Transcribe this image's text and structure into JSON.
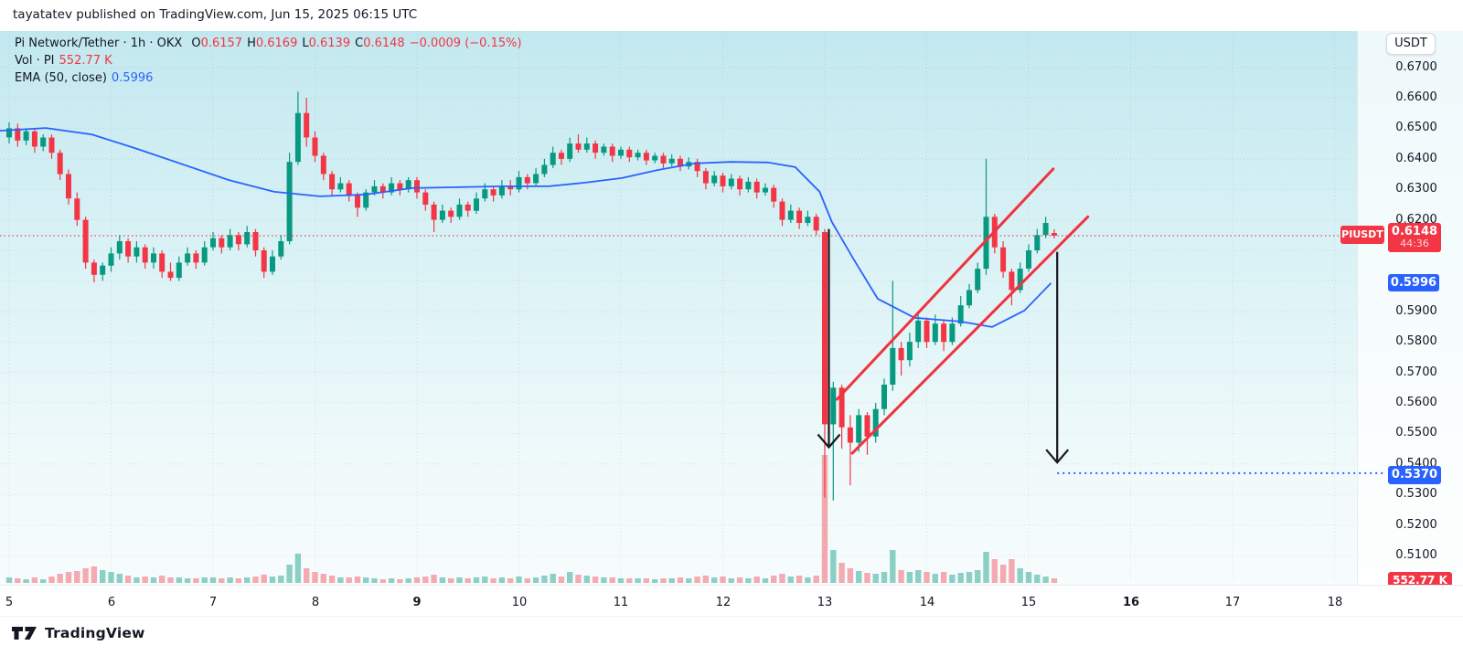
{
  "header": {
    "attribution": "tayatatev published on TradingView.com, Jun 15, 2025 06:15 UTC"
  },
  "legend": {
    "symbol_line": "Pi Network/Tether · 1h · OKX",
    "ohlc": {
      "o_label": "O",
      "o": "0.6157",
      "h_label": "H",
      "h": "0.6169",
      "l_label": "L",
      "l": "0.6139",
      "c_label": "C",
      "c": "0.6148",
      "change": "−0.0009 (−0.15%)"
    },
    "volume_row": {
      "label": "Vol · PI",
      "value": "552.77 K"
    },
    "ema_row": {
      "label": "EMA (50, close)",
      "value": "0.5996"
    }
  },
  "price_axis": {
    "currency": "USDT",
    "ticks": [
      {
        "label": "0.6700",
        "value": 0.67
      },
      {
        "label": "0.6600",
        "value": 0.66
      },
      {
        "label": "0.6500",
        "value": 0.65
      },
      {
        "label": "0.6400",
        "value": 0.64
      },
      {
        "label": "0.6300",
        "value": 0.63
      },
      {
        "label": "0.6200",
        "value": 0.62
      },
      {
        "label": "0.5900",
        "value": 0.59
      },
      {
        "label": "0.5800",
        "value": 0.58
      },
      {
        "label": "0.5700",
        "value": 0.57
      },
      {
        "label": "0.5600",
        "value": 0.56
      },
      {
        "label": "0.5500",
        "value": 0.55
      },
      {
        "label": "0.5400",
        "value": 0.54
      },
      {
        "label": "0.5300",
        "value": 0.53
      },
      {
        "label": "0.5200",
        "value": 0.52
      },
      {
        "label": "0.5100",
        "value": 0.51
      }
    ],
    "badges": {
      "symbol": "PIUSDT",
      "price": "0.6148",
      "countdown": "44:36",
      "ema": "0.5996",
      "target": "0.5370",
      "volume": "552.77 K"
    }
  },
  "time_axis": {
    "labels": [
      {
        "text": "5",
        "t": 5,
        "bold": false
      },
      {
        "text": "6",
        "t": 6,
        "bold": false
      },
      {
        "text": "7",
        "t": 7,
        "bold": false
      },
      {
        "text": "8",
        "t": 8,
        "bold": false
      },
      {
        "text": "9",
        "t": 9,
        "bold": true
      },
      {
        "text": "10",
        "t": 10,
        "bold": false
      },
      {
        "text": "11",
        "t": 11,
        "bold": false
      },
      {
        "text": "12",
        "t": 12,
        "bold": false
      },
      {
        "text": "13",
        "t": 13,
        "bold": false
      },
      {
        "text": "14",
        "t": 14,
        "bold": false
      },
      {
        "text": "15",
        "t": 15,
        "bold": false
      },
      {
        "text": "16",
        "t": 16,
        "bold": true
      },
      {
        "text": "17",
        "t": 17,
        "bold": false
      },
      {
        "text": "18",
        "t": 18,
        "bold": false
      }
    ]
  },
  "footer": {
    "brand": "TradingView"
  },
  "colors": {
    "up": "#089981",
    "down": "#f23645",
    "ema": "#2962ff",
    "vol_up": "rgba(8,153,129,0.45)",
    "vol_down": "rgba(242,54,69,0.42)",
    "channel": "#ef333f",
    "arrow": "#16181e",
    "price_line": "#f23645",
    "target_line": "#2962ff",
    "grid": "rgba(19,23,34,0.10)"
  },
  "chart_data": {
    "type": "candlestick",
    "title": "Pi Network/Tether 1h OKX",
    "symbol": "PIUSDT",
    "exchange": "OKX",
    "interval": "1h",
    "x_unit": "day of June 2025",
    "ylabel": "USDT",
    "ylim": [
      0.505,
      0.675
    ],
    "xlim": [
      4.9,
      18.6
    ],
    "t0": 5.0,
    "dt": 0.0833333,
    "current_price": 0.6148,
    "countdown": "44:36",
    "ema_period": 50,
    "ema_value": 0.5996,
    "target_price": 0.537,
    "last_bar_volume": "552.77 K",
    "candles": [
      [
        0.647,
        0.652,
        0.645,
        0.65,
        6
      ],
      [
        0.65,
        0.6515,
        0.644,
        0.646,
        5
      ],
      [
        0.646,
        0.65,
        0.6445,
        0.649,
        4
      ],
      [
        0.649,
        0.65,
        0.642,
        0.644,
        6
      ],
      [
        0.644,
        0.648,
        0.6425,
        0.647,
        4
      ],
      [
        0.647,
        0.648,
        0.64,
        0.642,
        7
      ],
      [
        0.642,
        0.643,
        0.633,
        0.635,
        10
      ],
      [
        0.635,
        0.6365,
        0.625,
        0.627,
        12
      ],
      [
        0.627,
        0.629,
        0.618,
        0.62,
        13
      ],
      [
        0.62,
        0.621,
        0.604,
        0.606,
        16
      ],
      [
        0.606,
        0.607,
        0.5995,
        0.602,
        18
      ],
      [
        0.602,
        0.606,
        0.6,
        0.605,
        14
      ],
      [
        0.605,
        0.611,
        0.603,
        0.609,
        12
      ],
      [
        0.609,
        0.615,
        0.607,
        0.613,
        10
      ],
      [
        0.613,
        0.614,
        0.606,
        0.608,
        8
      ],
      [
        0.608,
        0.613,
        0.606,
        0.611,
        6
      ],
      [
        0.611,
        0.612,
        0.604,
        0.606,
        7
      ],
      [
        0.606,
        0.611,
        0.604,
        0.609,
        6
      ],
      [
        0.609,
        0.61,
        0.601,
        0.603,
        8
      ],
      [
        0.603,
        0.606,
        0.6,
        0.601,
        6
      ],
      [
        0.601,
        0.608,
        0.6,
        0.606,
        6
      ],
      [
        0.606,
        0.611,
        0.605,
        0.609,
        5
      ],
      [
        0.609,
        0.61,
        0.604,
        0.606,
        5
      ],
      [
        0.606,
        0.613,
        0.605,
        0.611,
        6
      ],
      [
        0.611,
        0.616,
        0.61,
        0.614,
        6
      ],
      [
        0.614,
        0.615,
        0.609,
        0.611,
        5
      ],
      [
        0.611,
        0.617,
        0.61,
        0.615,
        6
      ],
      [
        0.615,
        0.616,
        0.61,
        0.612,
        5
      ],
      [
        0.612,
        0.618,
        0.611,
        0.616,
        6
      ],
      [
        0.616,
        0.617,
        0.608,
        0.61,
        7
      ],
      [
        0.61,
        0.611,
        0.601,
        0.603,
        9
      ],
      [
        0.603,
        0.61,
        0.602,
        0.608,
        7
      ],
      [
        0.608,
        0.615,
        0.607,
        0.613,
        8
      ],
      [
        0.613,
        0.642,
        0.612,
        0.639,
        20
      ],
      [
        0.639,
        0.662,
        0.638,
        0.655,
        32
      ],
      [
        0.655,
        0.66,
        0.644,
        0.647,
        16
      ],
      [
        0.647,
        0.649,
        0.639,
        0.641,
        12
      ],
      [
        0.641,
        0.642,
        0.633,
        0.635,
        10
      ],
      [
        0.635,
        0.636,
        0.628,
        0.63,
        8
      ],
      [
        0.63,
        0.634,
        0.629,
        0.632,
        6
      ],
      [
        0.632,
        0.633,
        0.626,
        0.628,
        6
      ],
      [
        0.628,
        0.629,
        0.621,
        0.624,
        7
      ],
      [
        0.624,
        0.63,
        0.623,
        0.629,
        6
      ],
      [
        0.629,
        0.633,
        0.628,
        0.631,
        5
      ],
      [
        0.631,
        0.632,
        0.627,
        0.629,
        4
      ],
      [
        0.629,
        0.634,
        0.628,
        0.632,
        5
      ],
      [
        0.632,
        0.633,
        0.628,
        0.63,
        4
      ],
      [
        0.63,
        0.634,
        0.629,
        0.633,
        5
      ],
      [
        0.633,
        0.634,
        0.627,
        0.629,
        6
      ],
      [
        0.629,
        0.63,
        0.623,
        0.625,
        7
      ],
      [
        0.625,
        0.626,
        0.616,
        0.62,
        9
      ],
      [
        0.62,
        0.625,
        0.619,
        0.623,
        6
      ],
      [
        0.623,
        0.624,
        0.619,
        0.621,
        5
      ],
      [
        0.621,
        0.627,
        0.62,
        0.625,
        6
      ],
      [
        0.625,
        0.626,
        0.621,
        0.623,
        5
      ],
      [
        0.623,
        0.629,
        0.622,
        0.627,
        6
      ],
      [
        0.627,
        0.632,
        0.626,
        0.63,
        7
      ],
      [
        0.63,
        0.631,
        0.626,
        0.628,
        5
      ],
      [
        0.628,
        0.633,
        0.627,
        0.631,
        6
      ],
      [
        0.631,
        0.633,
        0.628,
        0.63,
        5
      ],
      [
        0.63,
        0.636,
        0.629,
        0.634,
        7
      ],
      [
        0.634,
        0.635,
        0.63,
        0.632,
        5
      ],
      [
        0.632,
        0.637,
        0.631,
        0.635,
        6
      ],
      [
        0.635,
        0.64,
        0.634,
        0.638,
        8
      ],
      [
        0.638,
        0.644,
        0.637,
        0.642,
        10
      ],
      [
        0.642,
        0.643,
        0.638,
        0.64,
        7
      ],
      [
        0.64,
        0.647,
        0.639,
        0.645,
        12
      ],
      [
        0.645,
        0.648,
        0.642,
        0.643,
        9
      ],
      [
        0.643,
        0.647,
        0.642,
        0.645,
        8
      ],
      [
        0.645,
        0.646,
        0.64,
        0.642,
        7
      ],
      [
        0.642,
        0.645,
        0.641,
        0.644,
        6
      ],
      [
        0.644,
        0.645,
        0.639,
        0.641,
        6
      ],
      [
        0.641,
        0.644,
        0.64,
        0.643,
        5
      ],
      [
        0.643,
        0.644,
        0.639,
        0.6405,
        5
      ],
      [
        0.6405,
        0.643,
        0.6395,
        0.642,
        5
      ],
      [
        0.642,
        0.643,
        0.638,
        0.6395,
        5
      ],
      [
        0.6395,
        0.642,
        0.6385,
        0.641,
        4
      ],
      [
        0.641,
        0.642,
        0.637,
        0.6385,
        5
      ],
      [
        0.6385,
        0.6415,
        0.6375,
        0.64,
        5
      ],
      [
        0.64,
        0.641,
        0.636,
        0.6375,
        6
      ],
      [
        0.6375,
        0.6405,
        0.6365,
        0.639,
        5
      ],
      [
        0.639,
        0.64,
        0.634,
        0.636,
        7
      ],
      [
        0.636,
        0.637,
        0.63,
        0.632,
        8
      ],
      [
        0.632,
        0.636,
        0.631,
        0.6345,
        6
      ],
      [
        0.6345,
        0.6355,
        0.629,
        0.631,
        7
      ],
      [
        0.631,
        0.635,
        0.63,
        0.6335,
        5
      ],
      [
        0.6335,
        0.6345,
        0.628,
        0.63,
        6
      ],
      [
        0.63,
        0.634,
        0.629,
        0.6325,
        5
      ],
      [
        0.6325,
        0.6335,
        0.627,
        0.629,
        7
      ],
      [
        0.629,
        0.632,
        0.628,
        0.6305,
        5
      ],
      [
        0.6305,
        0.6315,
        0.624,
        0.626,
        8
      ],
      [
        0.626,
        0.627,
        0.618,
        0.62,
        10
      ],
      [
        0.62,
        0.625,
        0.619,
        0.623,
        7
      ],
      [
        0.623,
        0.624,
        0.617,
        0.619,
        8
      ],
      [
        0.619,
        0.623,
        0.618,
        0.621,
        6
      ],
      [
        0.621,
        0.622,
        0.615,
        0.6165,
        8
      ],
      [
        0.616,
        0.617,
        0.529,
        0.553,
        140
      ],
      [
        0.553,
        0.567,
        0.528,
        0.565,
        36
      ],
      [
        0.565,
        0.566,
        0.545,
        0.552,
        22
      ],
      [
        0.552,
        0.556,
        0.533,
        0.547,
        16
      ],
      [
        0.547,
        0.558,
        0.544,
        0.556,
        13
      ],
      [
        0.556,
        0.557,
        0.543,
        0.549,
        11
      ],
      [
        0.549,
        0.56,
        0.547,
        0.558,
        10
      ],
      [
        0.558,
        0.568,
        0.556,
        0.566,
        12
      ],
      [
        0.566,
        0.6,
        0.564,
        0.578,
        36
      ],
      [
        0.578,
        0.58,
        0.569,
        0.574,
        14
      ],
      [
        0.574,
        0.583,
        0.572,
        0.58,
        12
      ],
      [
        0.58,
        0.59,
        0.578,
        0.587,
        14
      ],
      [
        0.587,
        0.588,
        0.578,
        0.58,
        12
      ],
      [
        0.58,
        0.589,
        0.579,
        0.586,
        10
      ],
      [
        0.586,
        0.587,
        0.577,
        0.58,
        12
      ],
      [
        0.58,
        0.588,
        0.579,
        0.586,
        9
      ],
      [
        0.586,
        0.595,
        0.585,
        0.592,
        11
      ],
      [
        0.592,
        0.599,
        0.591,
        0.597,
        12
      ],
      [
        0.597,
        0.606,
        0.596,
        0.604,
        14
      ],
      [
        0.604,
        0.64,
        0.602,
        0.621,
        34
      ],
      [
        0.621,
        0.622,
        0.609,
        0.611,
        26
      ],
      [
        0.611,
        0.613,
        0.601,
        0.603,
        20
      ],
      [
        0.603,
        0.604,
        0.592,
        0.597,
        26
      ],
      [
        0.597,
        0.606,
        0.596,
        0.604,
        16
      ],
      [
        0.604,
        0.612,
        0.603,
        0.61,
        12
      ],
      [
        0.61,
        0.617,
        0.609,
        0.615,
        9
      ],
      [
        0.615,
        0.621,
        0.614,
        0.619,
        7
      ],
      [
        0.6157,
        0.6169,
        0.6139,
        0.6148,
        5
      ]
    ],
    "ema_points": [
      [
        4.91,
        0.6492
      ],
      [
        5.36,
        0.6501
      ],
      [
        5.81,
        0.648
      ],
      [
        6.26,
        0.6432
      ],
      [
        6.7,
        0.6382
      ],
      [
        7.15,
        0.6331
      ],
      [
        7.6,
        0.6292
      ],
      [
        8.05,
        0.6277
      ],
      [
        8.5,
        0.6283
      ],
      [
        8.95,
        0.6304
      ],
      [
        9.39,
        0.6307
      ],
      [
        9.84,
        0.631
      ],
      [
        10.29,
        0.631
      ],
      [
        10.65,
        0.6322
      ],
      [
        11.01,
        0.6337
      ],
      [
        11.37,
        0.6364
      ],
      [
        11.73,
        0.6385
      ],
      [
        12.08,
        0.639
      ],
      [
        12.44,
        0.6388
      ],
      [
        12.71,
        0.6373
      ],
      [
        12.95,
        0.6292
      ],
      [
        13.07,
        0.6193
      ],
      [
        13.28,
        0.6073
      ],
      [
        13.52,
        0.5941
      ],
      [
        13.88,
        0.5879
      ],
      [
        14.33,
        0.5867
      ],
      [
        14.64,
        0.5849
      ],
      [
        14.96,
        0.5903
      ],
      [
        15.22,
        0.5993
      ]
    ],
    "annotations": {
      "channel_upper": {
        "from": [
          13.12,
          0.5612
        ],
        "to": [
          15.24,
          0.6367
        ]
      },
      "channel_lower": {
        "from": [
          13.27,
          0.5435
        ],
        "to": [
          15.58,
          0.621
        ]
      },
      "arrow_down_1": {
        "t": 13.04,
        "from_price": 0.617,
        "to_price": 0.5455
      },
      "arrow_down_2": {
        "t": 15.28,
        "from_price": 0.6095,
        "to_price": 0.5405
      },
      "price_dotted_line": 0.6148,
      "target_dotted_line": 0.537
    }
  }
}
